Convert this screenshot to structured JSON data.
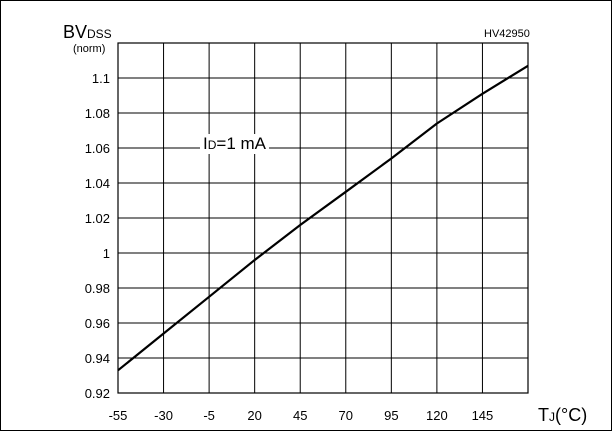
{
  "chart_data": {
    "type": "line",
    "id_code": "HV42950",
    "ylabel": {
      "main": "BV",
      "sub": "DSS",
      "unit": "(norm)"
    },
    "xlabel": {
      "main": "T",
      "sub": "J",
      "unit": "(°C)"
    },
    "annotation": {
      "main": "I",
      "sub": "D",
      "rest": "=1 mA"
    },
    "x_ticks": [
      -55,
      -30,
      -5,
      20,
      45,
      70,
      95,
      120,
      145
    ],
    "y_ticks": [
      0.92,
      0.94,
      0.96,
      0.98,
      1,
      1.02,
      1.04,
      1.06,
      1.08,
      1.1
    ],
    "y_tick_labels": [
      "0.92",
      "0.94",
      "0.96",
      "0.98",
      "1",
      "1.02",
      "1.04",
      "1.06",
      "1.08",
      "1.1"
    ],
    "xlim": [
      -55,
      170
    ],
    "ylim": [
      0.92,
      1.12
    ],
    "grid": true,
    "series": [
      {
        "x": [
          -55,
          -30,
          -5,
          20,
          45,
          70,
          95,
          120,
          145,
          170
        ],
        "y": [
          0.933,
          0.954,
          0.975,
          0.996,
          1.016,
          1.035,
          1.054,
          1.074,
          1.091,
          1.107
        ]
      }
    ]
  }
}
